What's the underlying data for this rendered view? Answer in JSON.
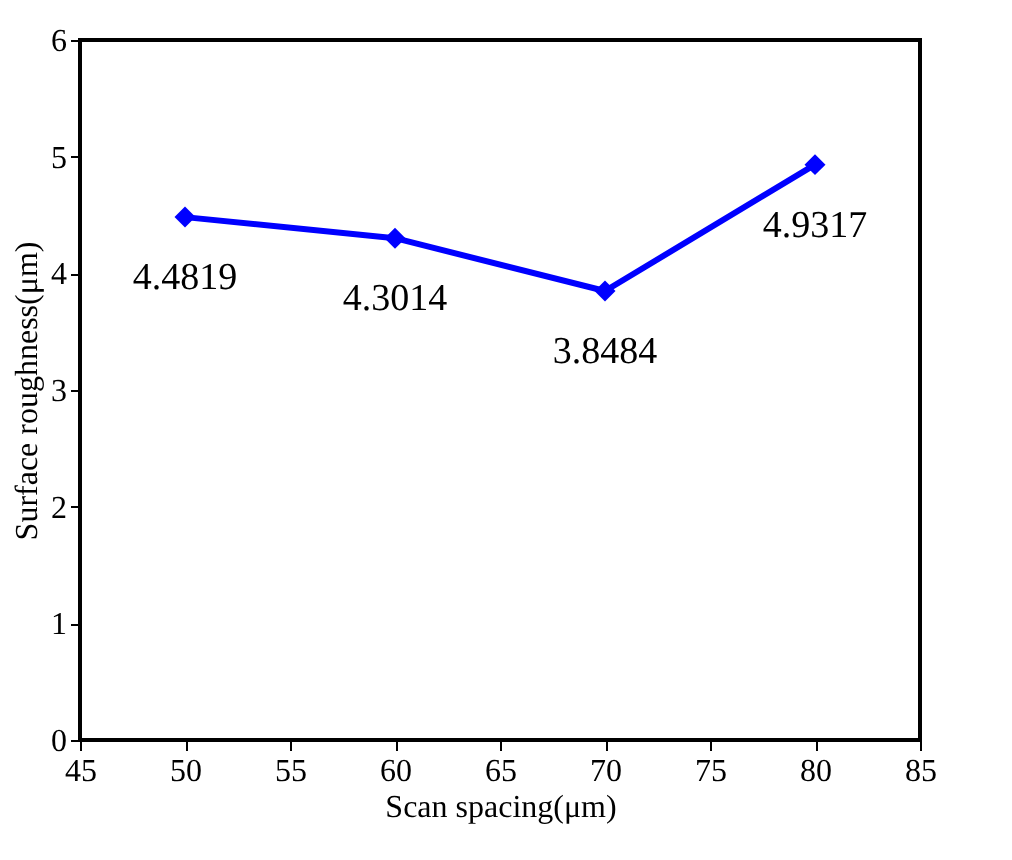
{
  "chart_data": {
    "type": "line",
    "xlabel": "Scan spacing(μm)",
    "ylabel": "Surface roughness(μm)",
    "x": [
      50,
      60,
      70,
      80
    ],
    "series": [
      {
        "color": "#0000ff",
        "values": [
          4.4819,
          4.3014,
          3.8484,
          4.9317
        ]
      }
    ],
    "xlim": [
      45,
      85
    ],
    "xticks": [
      45,
      50,
      55,
      60,
      65,
      70,
      75,
      80,
      85
    ],
    "ylim": [
      0,
      6
    ],
    "yticks": [
      0,
      1,
      2,
      3,
      4,
      5,
      6
    ],
    "grid": false,
    "legend": false,
    "marker": "diamond",
    "line_style": "solid",
    "data_labels": true
  }
}
